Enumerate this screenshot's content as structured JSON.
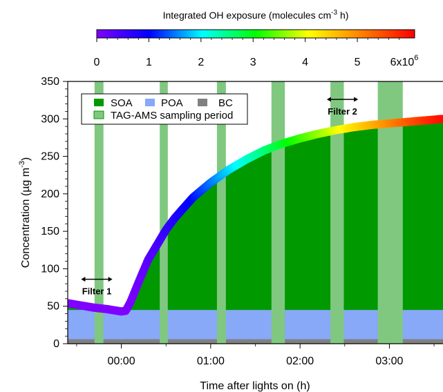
{
  "chart_data": {
    "type": "area",
    "xlabel": "Time after lights on (h)",
    "ylabel_main": "Concentration (µg m",
    "ylabel_sup": "-3",
    "ylabel_tail": ")",
    "xlim": [
      -0.6,
      3.6
    ],
    "ylim": [
      0,
      350
    ],
    "x_ticks": [
      {
        "value": 0,
        "label": "00:00"
      },
      {
        "value": 1,
        "label": "01:00"
      },
      {
        "value": 2,
        "label": "02:00"
      },
      {
        "value": 3,
        "label": "03:00"
      }
    ],
    "y_ticks": [
      {
        "value": 0,
        "label": "0"
      },
      {
        "value": 50,
        "label": "50"
      },
      {
        "value": 100,
        "label": "100"
      },
      {
        "value": 150,
        "label": "150"
      },
      {
        "value": 200,
        "label": "200"
      },
      {
        "value": 250,
        "label": "250"
      },
      {
        "value": 300,
        "label": "300"
      },
      {
        "value": 350,
        "label": "350"
      }
    ],
    "colors": {
      "soa": "#009900",
      "poa": "#88a8f8",
      "bc": "#808080",
      "sampling": "#80c880"
    },
    "legend": {
      "placement": "top-left",
      "soa": "SOA",
      "poa": "POA",
      "bc": "BC",
      "sampling": "TAG-AMS sampling period"
    },
    "bc_level": 6,
    "poa_level": 45,
    "total_mass": {
      "x": [
        -0.6,
        -0.45,
        -0.3,
        -0.15,
        0.0,
        0.05,
        0.1,
        0.2,
        0.3,
        0.4,
        0.5,
        0.6,
        0.8,
        1.0,
        1.2,
        1.4,
        1.6,
        1.8,
        2.0,
        2.2,
        2.4,
        2.6,
        2.8,
        3.0,
        3.2,
        3.4,
        3.6
      ],
      "y": [
        54,
        51,
        48,
        46,
        43,
        44,
        55,
        84,
        112,
        132,
        152,
        168,
        195,
        215,
        232,
        246,
        258,
        267,
        274,
        280,
        285,
        289,
        292,
        294,
        296,
        298,
        300
      ],
      "oh_exposure": [
        0.0,
        0.0,
        0.0,
        0.0,
        0.0,
        0.02,
        0.05,
        0.15,
        0.3,
        0.45,
        0.6,
        0.75,
        1.05,
        1.45,
        1.85,
        2.2,
        2.55,
        2.9,
        3.25,
        3.6,
        3.95,
        4.3,
        4.65,
        5.0,
        5.35,
        5.7,
        6.0
      ]
    },
    "sampling_periods": [
      [
        -0.3,
        -0.2
      ],
      [
        0.43,
        0.52
      ],
      [
        1.07,
        1.17
      ],
      [
        1.68,
        1.83
      ],
      [
        2.34,
        2.49
      ],
      [
        2.87,
        3.15
      ]
    ],
    "filters": [
      {
        "label": "Filter 1",
        "x_start": -0.45,
        "x_end": -0.1,
        "y": 86
      },
      {
        "label": "Filter 2",
        "x_start": 2.3,
        "x_end": 2.65,
        "y": 326
      }
    ],
    "colorbar": {
      "title_main": "Integrated OH exposure (molecules cm",
      "title_sup": "-3",
      "title_tail": " h)",
      "min": 0,
      "max": 6.1,
      "ticks": [
        {
          "value": 0,
          "label": "0"
        },
        {
          "value": 1,
          "label": "1"
        },
        {
          "value": 2,
          "label": "2"
        },
        {
          "value": 3,
          "label": "3"
        },
        {
          "value": 4,
          "label": "4"
        },
        {
          "value": 5,
          "label": "5"
        }
      ],
      "max_label_main": "6x10",
      "max_label_sup": "6",
      "stops": [
        "#8000ff",
        "#0000ff",
        "#00ffff",
        "#00ff00",
        "#ffff00",
        "#ff8000",
        "#ff0000"
      ]
    }
  }
}
